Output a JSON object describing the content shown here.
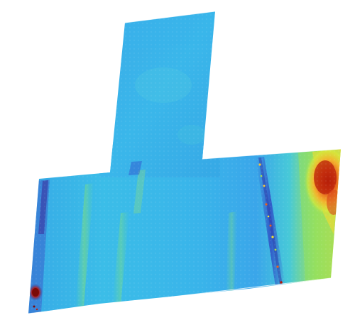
{
  "map": {
    "type": "heatmap",
    "colormap": "jet",
    "background": "#ffffff",
    "palette": {
      "low": "#2a2a9c",
      "mid_low": "#2f8fdc",
      "mid": "#3fc0e8",
      "mid_high": "#7fe06a",
      "high": "#f2e531",
      "very_high": "#e8641c",
      "max": "#8a1008"
    }
  }
}
